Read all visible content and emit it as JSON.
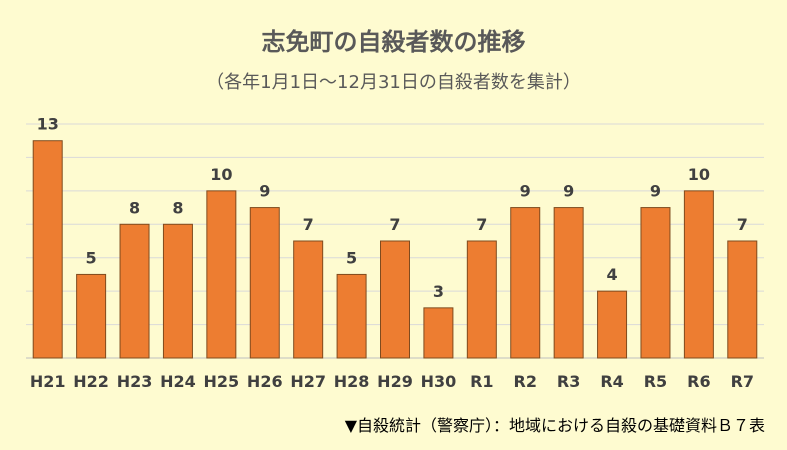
{
  "chart_data": {
    "type": "bar",
    "title": "志免町の自殺者数の推移",
    "subtitle": "（各年1月1日～12月31日の自殺者数を集計）",
    "categories": [
      "H21",
      "H22",
      "H23",
      "H24",
      "H25",
      "H26",
      "H27",
      "H28",
      "H29",
      "H30",
      "R1",
      "R2",
      "R3",
      "R4",
      "R5",
      "R6",
      "R7"
    ],
    "values": [
      13,
      5,
      8,
      8,
      10,
      9,
      7,
      5,
      7,
      3,
      7,
      9,
      9,
      4,
      9,
      10,
      7
    ],
    "ylim": [
      0,
      14
    ],
    "grid": true,
    "bar_color": "#ed7d31",
    "source": "▼自殺統計（警察庁）：地域における自殺の基礎資料Ｂ７表"
  }
}
